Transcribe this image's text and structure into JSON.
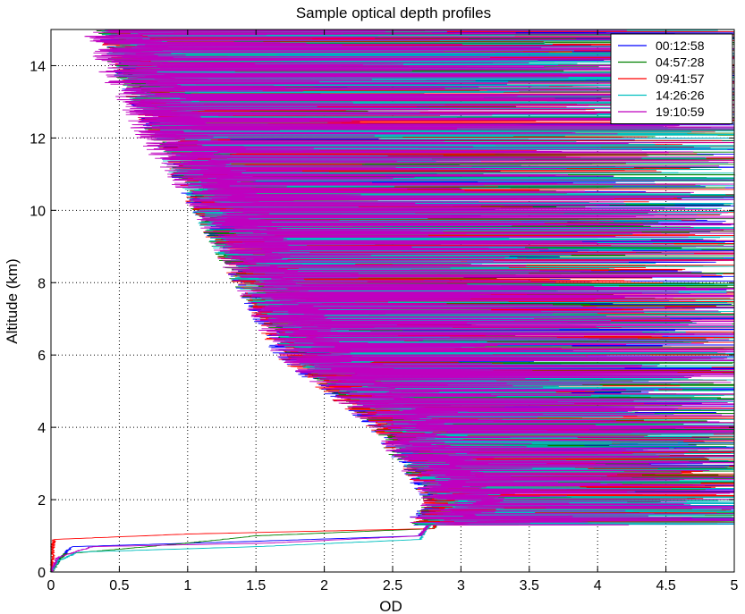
{
  "chart_data": {
    "type": "line",
    "title": "Sample optical depth profiles",
    "xlabel": "OD",
    "ylabel": "Altitude (km)",
    "xlim": [
      0,
      5
    ],
    "ylim": [
      0,
      15
    ],
    "xticks": [
      0,
      0.5,
      1,
      1.5,
      2,
      2.5,
      3,
      3.5,
      4,
      4.5,
      5
    ],
    "xtick_labels": [
      "0",
      "0.5",
      "1",
      "1.5",
      "2",
      "2.5",
      "3",
      "3.5",
      "4",
      "4.5",
      "5"
    ],
    "yticks": [
      0,
      2,
      4,
      6,
      8,
      10,
      12,
      14
    ],
    "ytick_labels": [
      "0",
      "2",
      "4",
      "6",
      "8",
      "10",
      "12",
      "14"
    ],
    "grid": true,
    "legend_position": "top-right",
    "series": [
      {
        "name": "00:12:58",
        "color": "#0000ff",
        "base_profile": [
          {
            "y": 0.0,
            "x": 0.0
          },
          {
            "y": 0.3,
            "x": 0.05
          },
          {
            "y": 0.7,
            "x": 0.15
          },
          {
            "y": 0.85,
            "x": 1.5
          },
          {
            "y": 1.0,
            "x": 2.7
          },
          {
            "y": 2.0,
            "x": 2.9
          },
          {
            "y": 4.0,
            "x": 2.5
          },
          {
            "y": 6.0,
            "x": 1.8
          },
          {
            "y": 8.0,
            "x": 1.5
          },
          {
            "y": 10.0,
            "x": 1.2
          },
          {
            "y": 12.0,
            "x": 0.9
          },
          {
            "y": 14.0,
            "x": 0.6
          },
          {
            "y": 15.0,
            "x": 0.5
          }
        ]
      },
      {
        "name": "04:57:28",
        "color": "#008000",
        "base_profile": [
          {
            "y": 0.0,
            "x": 0.0
          },
          {
            "y": 0.5,
            "x": 0.1
          },
          {
            "y": 0.8,
            "x": 1.0
          },
          {
            "y": 1.0,
            "x": 1.5
          },
          {
            "y": 1.2,
            "x": 2.8
          },
          {
            "y": 2.0,
            "x": 2.9
          },
          {
            "y": 4.0,
            "x": 2.5
          },
          {
            "y": 6.0,
            "x": 1.9
          },
          {
            "y": 8.0,
            "x": 1.5
          },
          {
            "y": 10.0,
            "x": 1.2
          },
          {
            "y": 12.0,
            "x": 0.9
          },
          {
            "y": 14.0,
            "x": 0.6
          },
          {
            "y": 15.0,
            "x": 0.5
          }
        ]
      },
      {
        "name": "09:41:57",
        "color": "#ff0000",
        "base_profile": [
          {
            "y": 0.0,
            "x": 0.0
          },
          {
            "y": 0.9,
            "x": 0.02
          },
          {
            "y": 1.05,
            "x": 1.0
          },
          {
            "y": 1.2,
            "x": 2.8
          },
          {
            "y": 2.0,
            "x": 2.9
          },
          {
            "y": 4.0,
            "x": 2.5
          },
          {
            "y": 6.0,
            "x": 1.8
          },
          {
            "y": 8.0,
            "x": 1.5
          },
          {
            "y": 10.0,
            "x": 1.2
          },
          {
            "y": 12.0,
            "x": 0.9
          },
          {
            "y": 14.0,
            "x": 0.6
          },
          {
            "y": 15.0,
            "x": 0.5
          }
        ]
      },
      {
        "name": "14:26:26",
        "color": "#00bfbf",
        "base_profile": [
          {
            "y": 0.0,
            "x": 0.0
          },
          {
            "y": 0.3,
            "x": 0.05
          },
          {
            "y": 0.55,
            "x": 0.2
          },
          {
            "y": 0.7,
            "x": 1.5
          },
          {
            "y": 0.9,
            "x": 2.7
          },
          {
            "y": 2.0,
            "x": 2.9
          },
          {
            "y": 4.0,
            "x": 2.6
          },
          {
            "y": 6.0,
            "x": 1.9
          },
          {
            "y": 8.0,
            "x": 1.5
          },
          {
            "y": 10.0,
            "x": 1.2
          },
          {
            "y": 12.0,
            "x": 0.9
          },
          {
            "y": 14.0,
            "x": 0.6
          },
          {
            "y": 15.0,
            "x": 0.5
          }
        ]
      },
      {
        "name": "19:10:59",
        "color": "#bf00bf",
        "base_profile": [
          {
            "y": 0.0,
            "x": 0.0
          },
          {
            "y": 0.4,
            "x": 0.05
          },
          {
            "y": 0.7,
            "x": 0.3
          },
          {
            "y": 0.8,
            "x": 1.6
          },
          {
            "y": 1.0,
            "x": 2.7
          },
          {
            "y": 2.0,
            "x": 2.9
          },
          {
            "y": 4.0,
            "x": 2.5
          },
          {
            "y": 6.0,
            "x": 1.8
          },
          {
            "y": 8.0,
            "x": 1.5
          },
          {
            "y": 10.0,
            "x": 1.2
          },
          {
            "y": 12.0,
            "x": 0.8
          },
          {
            "y": 14.0,
            "x": 0.5
          },
          {
            "y": 15.0,
            "x": 0.4
          }
        ]
      }
    ]
  }
}
